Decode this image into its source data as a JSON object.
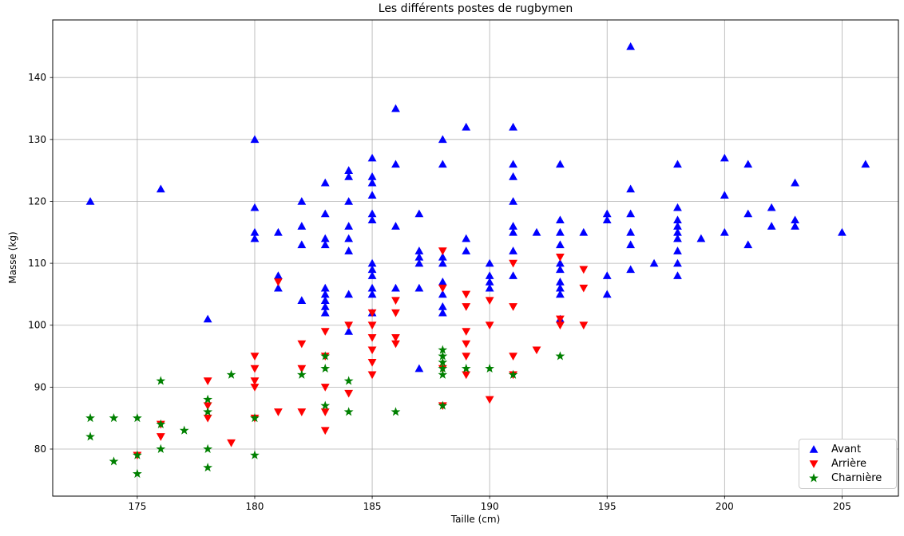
{
  "chart_data": {
    "type": "scatter",
    "title": "Les différents postes de rugbymen",
    "xlabel": "Taille (cm)",
    "ylabel": "Masse (kg)",
    "xlim": [
      171.4,
      207.4
    ],
    "ylim": [
      72.4,
      149.3
    ],
    "xticks": [
      175,
      180,
      185,
      190,
      195,
      200,
      205
    ],
    "yticks": [
      80,
      90,
      100,
      110,
      120,
      130,
      140
    ],
    "grid": true,
    "legend_position": "lower right",
    "marker_size": 6,
    "colors": {
      "grid": "#b0b0b0",
      "frame": "#000000",
      "background": "#ffffff",
      "avant": "#0000ff",
      "arriere": "#ff0000",
      "charniere": "#008000"
    },
    "series": [
      {
        "name": "Avant",
        "marker": "triangle-up",
        "color": "#0000ff",
        "points": [
          [
            173,
            120
          ],
          [
            176,
            122
          ],
          [
            178,
            101
          ],
          [
            180,
            130
          ],
          [
            180,
            119
          ],
          [
            180,
            115
          ],
          [
            180,
            114
          ],
          [
            181,
            115
          ],
          [
            181,
            108
          ],
          [
            181,
            106
          ],
          [
            182,
            120
          ],
          [
            182,
            116
          ],
          [
            182,
            113
          ],
          [
            182,
            104
          ],
          [
            183,
            123
          ],
          [
            183,
            118
          ],
          [
            183,
            114
          ],
          [
            183,
            113
          ],
          [
            183,
            106
          ],
          [
            183,
            105
          ],
          [
            183,
            104
          ],
          [
            183,
            103
          ],
          [
            183,
            102
          ],
          [
            184,
            125
          ],
          [
            184,
            124
          ],
          [
            184,
            120
          ],
          [
            184,
            116
          ],
          [
            184,
            114
          ],
          [
            184,
            112
          ],
          [
            184,
            105
          ],
          [
            184,
            99
          ],
          [
            185,
            127
          ],
          [
            185,
            124
          ],
          [
            185,
            123
          ],
          [
            185,
            121
          ],
          [
            185,
            118
          ],
          [
            185,
            117
          ],
          [
            185,
            110
          ],
          [
            185,
            109
          ],
          [
            185,
            108
          ],
          [
            185,
            106
          ],
          [
            185,
            105
          ],
          [
            185,
            102
          ],
          [
            186,
            135
          ],
          [
            186,
            126
          ],
          [
            186,
            116
          ],
          [
            186,
            106
          ],
          [
            187,
            118
          ],
          [
            187,
            112
          ],
          [
            187,
            111
          ],
          [
            187,
            110
          ],
          [
            187,
            106
          ],
          [
            187,
            93
          ],
          [
            188,
            130
          ],
          [
            188,
            126
          ],
          [
            188,
            111
          ],
          [
            188,
            110
          ],
          [
            188,
            107
          ],
          [
            188,
            105
          ],
          [
            188,
            103
          ],
          [
            188,
            102
          ],
          [
            189,
            132
          ],
          [
            189,
            114
          ],
          [
            189,
            112
          ],
          [
            190,
            110
          ],
          [
            190,
            108
          ],
          [
            190,
            107
          ],
          [
            190,
            106
          ],
          [
            191,
            132
          ],
          [
            191,
            126
          ],
          [
            191,
            124
          ],
          [
            191,
            120
          ],
          [
            191,
            116
          ],
          [
            191,
            115
          ],
          [
            191,
            112
          ],
          [
            191,
            108
          ],
          [
            192,
            115
          ],
          [
            193,
            126
          ],
          [
            193,
            117
          ],
          [
            193,
            115
          ],
          [
            193,
            113
          ],
          [
            193,
            110
          ],
          [
            193,
            109
          ],
          [
            193,
            107
          ],
          [
            193,
            106
          ],
          [
            193,
            105
          ],
          [
            193,
            101
          ],
          [
            194,
            115
          ],
          [
            195,
            118
          ],
          [
            195,
            117
          ],
          [
            195,
            108
          ],
          [
            195,
            105
          ],
          [
            196,
            145
          ],
          [
            196,
            122
          ],
          [
            196,
            118
          ],
          [
            196,
            115
          ],
          [
            196,
            113
          ],
          [
            196,
            109
          ],
          [
            197,
            110
          ],
          [
            198,
            126
          ],
          [
            198,
            119
          ],
          [
            198,
            117
          ],
          [
            198,
            116
          ],
          [
            198,
            115
          ],
          [
            198,
            114
          ],
          [
            198,
            112
          ],
          [
            198,
            110
          ],
          [
            198,
            108
          ],
          [
            199,
            114
          ],
          [
            200,
            127
          ],
          [
            200,
            121
          ],
          [
            200,
            115
          ],
          [
            201,
            126
          ],
          [
            201,
            118
          ],
          [
            201,
            113
          ],
          [
            202,
            119
          ],
          [
            202,
            116
          ],
          [
            203,
            123
          ],
          [
            203,
            117
          ],
          [
            203,
            116
          ],
          [
            205,
            115
          ],
          [
            206,
            126
          ]
        ]
      },
      {
        "name": "Arrière",
        "marker": "triangle-down",
        "color": "#ff0000",
        "points": [
          [
            175,
            79
          ],
          [
            176,
            84
          ],
          [
            176,
            82
          ],
          [
            178,
            91
          ],
          [
            178,
            87
          ],
          [
            178,
            85
          ],
          [
            179,
            81
          ],
          [
            180,
            95
          ],
          [
            180,
            93
          ],
          [
            180,
            91
          ],
          [
            180,
            90
          ],
          [
            180,
            85
          ],
          [
            181,
            107
          ],
          [
            181,
            86
          ],
          [
            182,
            97
          ],
          [
            182,
            93
          ],
          [
            182,
            86
          ],
          [
            183,
            99
          ],
          [
            183,
            95
          ],
          [
            183,
            90
          ],
          [
            183,
            86
          ],
          [
            183,
            83
          ],
          [
            184,
            100
          ],
          [
            184,
            89
          ],
          [
            185,
            102
          ],
          [
            185,
            100
          ],
          [
            185,
            98
          ],
          [
            185,
            96
          ],
          [
            185,
            94
          ],
          [
            185,
            92
          ],
          [
            186,
            104
          ],
          [
            186,
            102
          ],
          [
            186,
            98
          ],
          [
            186,
            97
          ],
          [
            188,
            112
          ],
          [
            188,
            106
          ],
          [
            188,
            93
          ],
          [
            188,
            87
          ],
          [
            189,
            105
          ],
          [
            189,
            103
          ],
          [
            189,
            99
          ],
          [
            189,
            97
          ],
          [
            189,
            95
          ],
          [
            189,
            92
          ],
          [
            190,
            104
          ],
          [
            190,
            100
          ],
          [
            190,
            88
          ],
          [
            191,
            110
          ],
          [
            191,
            103
          ],
          [
            191,
            95
          ],
          [
            191,
            92
          ],
          [
            192,
            96
          ],
          [
            193,
            111
          ],
          [
            193,
            101
          ],
          [
            193,
            100
          ],
          [
            194,
            109
          ],
          [
            194,
            106
          ],
          [
            194,
            100
          ]
        ]
      },
      {
        "name": "Charnière",
        "marker": "star",
        "color": "#008000",
        "points": [
          [
            173,
            85
          ],
          [
            173,
            82
          ],
          [
            174,
            85
          ],
          [
            174,
            78
          ],
          [
            175,
            85
          ],
          [
            175,
            79
          ],
          [
            175,
            76
          ],
          [
            176,
            91
          ],
          [
            176,
            84
          ],
          [
            176,
            80
          ],
          [
            177,
            83
          ],
          [
            178,
            88
          ],
          [
            178,
            86
          ],
          [
            178,
            80
          ],
          [
            178,
            77
          ],
          [
            179,
            92
          ],
          [
            180,
            85
          ],
          [
            180,
            79
          ],
          [
            182,
            92
          ],
          [
            183,
            95
          ],
          [
            183,
            93
          ],
          [
            183,
            87
          ],
          [
            184,
            91
          ],
          [
            184,
            86
          ],
          [
            186,
            86
          ],
          [
            188,
            96
          ],
          [
            188,
            95
          ],
          [
            188,
            94
          ],
          [
            188,
            93
          ],
          [
            188,
            92
          ],
          [
            188,
            87
          ],
          [
            189,
            93
          ],
          [
            190,
            93
          ],
          [
            191,
            92
          ],
          [
            193,
            95
          ]
        ]
      }
    ]
  }
}
